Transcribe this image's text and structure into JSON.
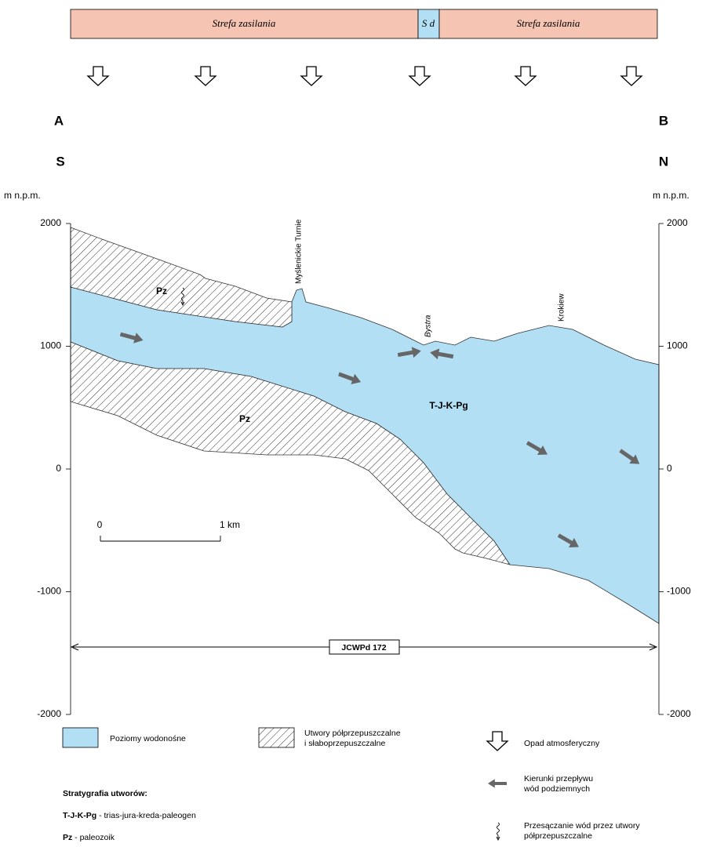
{
  "top_bar": {
    "left": "Strefa zasilania",
    "middle": "S d",
    "right": "Strefa zasilania"
  },
  "section": {
    "start": "A",
    "end": "B",
    "start_direction": "S",
    "end_direction": "N",
    "axis_unit_left": "m n.p.m.",
    "axis_unit_right": "m n.p.m.",
    "yticks": [
      2000,
      1000,
      0,
      -1000,
      -2000
    ],
    "labels": {
      "pz_upper": "Pz",
      "pz_lower": "Pz",
      "aquifer": "T-J-K-Pg",
      "peak_1": "Myślenickie Turnie",
      "valley": "Bystra",
      "peak_2": "Krokiew"
    },
    "scale_bar": {
      "start": "0",
      "end": "1 km"
    },
    "extent": "JCWPd 172"
  },
  "legend": {
    "aquifer": "Poziomy wodonośne",
    "semi_permeable": [
      "Utwory półprzepuszczalne",
      "i słaboprzepuszczalne"
    ],
    "precipitation": "Opad atmosferyczny",
    "flow": [
      "Kierunki przepływu",
      "wód podziemnych"
    ],
    "seepage": [
      "Przesączanie wód przez utwory",
      "półprzepuszczalne"
    ],
    "stratigraphy_title": "Stratygrafia utworów:",
    "stratigraphy": [
      {
        "code": "T-J-K-Pg",
        "text": " - trias-jura-kreda-paleogen"
      },
      {
        "code": "Pz",
        "text": " - paleozoik"
      }
    ]
  }
}
